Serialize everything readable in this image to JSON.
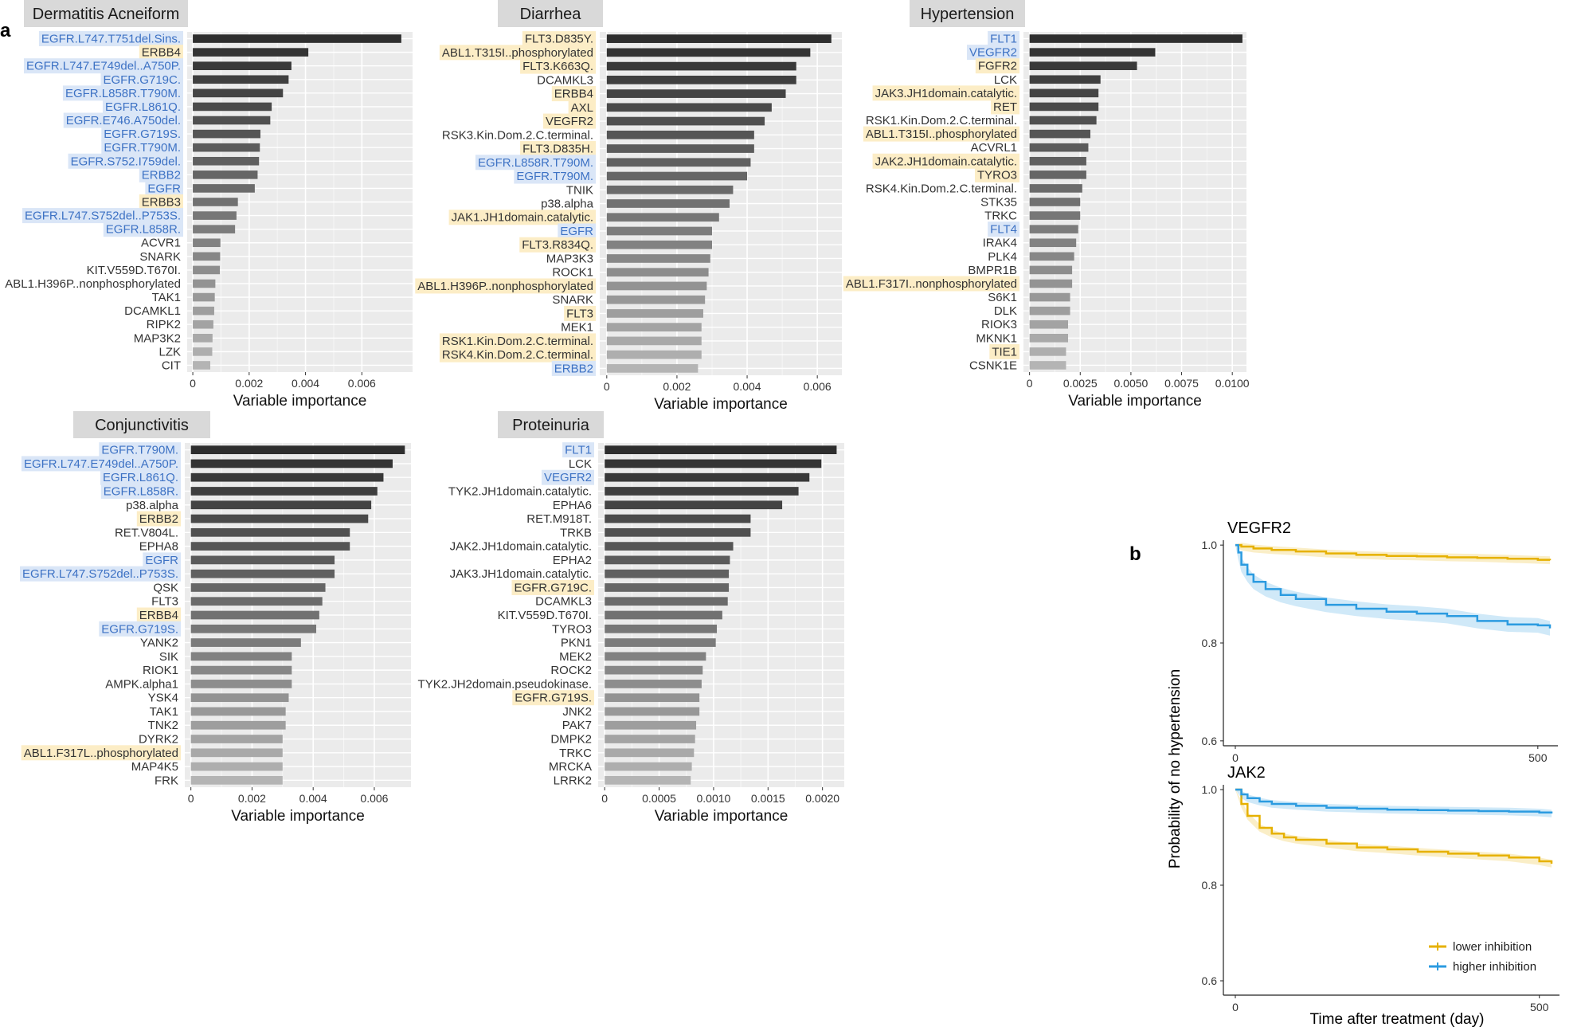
{
  "panel_letters": {
    "a": "a",
    "b": "b"
  },
  "colors": {
    "egfr_highlight": "#dae6f7",
    "egfr_text": "#3d72c4",
    "other_highlight": "#fcedc6",
    "bar_dark": "#2e2e2e",
    "bar_light": "#b4b4b4",
    "panel_bg": "#ebebeb",
    "strip_bg": "#d9d9d9",
    "km_lower": "#e6b100",
    "km_higher": "#2b9be0"
  },
  "chart_data": [
    {
      "type": "bar",
      "orientation": "horizontal",
      "title": "Dermatitis Acneiform",
      "xlabel": "Variable importance",
      "xlim": [
        -0.0002,
        0.0078
      ],
      "ticks": [
        0,
        0.002,
        0.004,
        0.006
      ],
      "tick_labels": [
        "0",
        "0.002",
        "0.004",
        "0.006"
      ],
      "categories": [
        "EGFR.L747.T751del.Sins.",
        "ERBB4",
        "EGFR.L747.E749del..A750P.",
        "EGFR.G719C.",
        "EGFR.L858R.T790M.",
        "EGFR.L861Q.",
        "EGFR.E746.A750del.",
        "EGFR.G719S.",
        "EGFR.T790M.",
        "EGFR.S752.I759del.",
        "ERBB2",
        "EGFR",
        "ERBB3",
        "EGFR.L747.S752del..P753S.",
        "EGFR.L858R.",
        "ACVR1",
        "SNARK",
        "KIT.V559D.T670I.",
        "ABL1.H396P..nonphosphorylated",
        "TAK1",
        "DCAMKL1",
        "RIPK2",
        "MAP3K2",
        "LZK",
        "CIT"
      ],
      "values": [
        0.0074,
        0.0041,
        0.0035,
        0.0034,
        0.0032,
        0.0028,
        0.00275,
        0.0024,
        0.00238,
        0.00235,
        0.0023,
        0.0022,
        0.0016,
        0.00155,
        0.0015,
        0.00098,
        0.00097,
        0.00096,
        0.0008,
        0.00078,
        0.00076,
        0.00073,
        0.0007,
        0.00069,
        0.00062
      ],
      "highlights": [
        "egfr",
        "other",
        "egfr",
        "egfr",
        "egfr",
        "egfr",
        "egfr",
        "egfr",
        "egfr",
        "egfr",
        "egfr",
        "egfr",
        "other",
        "egfr",
        "egfr",
        "",
        "",
        "",
        "",
        "",
        "",
        "",
        "",
        "",
        ""
      ]
    },
    {
      "type": "bar",
      "orientation": "horizontal",
      "title": "Diarrhea",
      "xlabel": "Variable importance",
      "xlim": [
        -0.0002,
        0.0067
      ],
      "ticks": [
        0,
        0.002,
        0.004,
        0.006
      ],
      "tick_labels": [
        "0",
        "0.002",
        "0.004",
        "0.006"
      ],
      "categories": [
        "FLT3.D835Y.",
        "ABL1.T315I..phosphorylated",
        "FLT3.K663Q.",
        "DCAMKL3",
        "ERBB4",
        "AXL",
        "VEGFR2",
        "RSK3.Kin.Dom.2.C.terminal.",
        "FLT3.D835H.",
        "EGFR.L858R.T790M.",
        "EGFR.T790M.",
        "TNIK",
        "p38.alpha",
        "JAK1.JH1domain.catalytic.",
        "EGFR",
        "FLT3.R834Q.",
        "MAP3K3",
        "ROCK1",
        "ABL1.H396P..nonphosphorylated",
        "SNARK",
        "FLT3",
        "MEK1",
        "RSK1.Kin.Dom.2.C.terminal.",
        "RSK4.Kin.Dom.2.C.terminal.",
        "ERBB2"
      ],
      "values": [
        0.0064,
        0.0058,
        0.0054,
        0.0054,
        0.0051,
        0.0047,
        0.0045,
        0.0042,
        0.0042,
        0.0041,
        0.004,
        0.0036,
        0.0035,
        0.0032,
        0.003,
        0.003,
        0.00295,
        0.0029,
        0.00285,
        0.0028,
        0.00275,
        0.0027,
        0.0027,
        0.0027,
        0.0026
      ],
      "highlights": [
        "other",
        "other",
        "other",
        "",
        "other",
        "other",
        "other",
        "",
        "other",
        "egfr",
        "egfr",
        "",
        "",
        "other",
        "egfr",
        "other",
        "",
        "",
        "other",
        "",
        "other",
        "",
        "other",
        "other",
        "egfr"
      ]
    },
    {
      "type": "bar",
      "orientation": "horizontal",
      "title": "Hypertension",
      "xlabel": "Variable importance",
      "xlim": [
        -0.0003,
        0.0107
      ],
      "ticks": [
        0,
        0.0025,
        0.005,
        0.0075,
        0.01
      ],
      "tick_labels": [
        "0",
        "0.0025",
        "0.0050",
        "0.0075",
        "0.0100"
      ],
      "categories": [
        "FLT1",
        "VEGFR2",
        "FGFR2",
        "LCK",
        "JAK3.JH1domain.catalytic.",
        "RET",
        "RSK1.Kin.Dom.2.C.terminal.",
        "ABL1.T315I..phosphorylated",
        "ACVRL1",
        "JAK2.JH1domain.catalytic.",
        "TYRO3",
        "RSK4.Kin.Dom.2.C.terminal.",
        "STK35",
        "TRKC",
        "FLT4",
        "IRAK4",
        "PLK4",
        "BMPR1B",
        "ABL1.F317I..nonphosphorylated",
        "S6K1",
        "DLK",
        "RIOK3",
        "MKNK1",
        "TIE1",
        "CSNK1E"
      ],
      "values": [
        0.0105,
        0.0062,
        0.0053,
        0.0035,
        0.0034,
        0.0034,
        0.0033,
        0.003,
        0.0029,
        0.0028,
        0.0028,
        0.0026,
        0.0025,
        0.0025,
        0.0024,
        0.0023,
        0.0022,
        0.0021,
        0.0021,
        0.002,
        0.002,
        0.0019,
        0.0019,
        0.0018,
        0.0018
      ],
      "highlights": [
        "egfr",
        "egfr",
        "other",
        "",
        "other",
        "other",
        "",
        "other",
        "",
        "other",
        "other",
        "",
        "",
        "",
        "egfr",
        "",
        "",
        "",
        "other",
        "",
        "",
        "",
        "",
        "other",
        ""
      ]
    },
    {
      "type": "bar",
      "orientation": "horizontal",
      "title": "Conjunctivitis",
      "xlabel": "Variable importance",
      "xlim": [
        -0.0002,
        0.0072
      ],
      "ticks": [
        0,
        0.002,
        0.004,
        0.006
      ],
      "tick_labels": [
        "0",
        "0.002",
        "0.004",
        "0.006"
      ],
      "categories": [
        "EGFR.T790M.",
        "EGFR.L747.E749del..A750P.",
        "EGFR.L861Q.",
        "EGFR.L858R.",
        "p38.alpha",
        "ERBB2",
        "RET.V804L.",
        "EPHA8",
        "EGFR",
        "EGFR.L747.S752del..P753S.",
        "QSK",
        "FLT3",
        "ERBB4",
        "EGFR.G719S.",
        "YANK2",
        "SIK",
        "RIOK1",
        "AMPK.alpha1",
        "YSK4",
        "TAK1",
        "TNK2",
        "DYRK2",
        "ABL1.F317L..phosphorylated",
        "MAP4K5",
        "FRK"
      ],
      "values": [
        0.007,
        0.0066,
        0.0063,
        0.0061,
        0.0059,
        0.0058,
        0.0052,
        0.0052,
        0.0047,
        0.0047,
        0.0044,
        0.0043,
        0.0042,
        0.0041,
        0.0036,
        0.0033,
        0.0033,
        0.0033,
        0.0032,
        0.0031,
        0.0031,
        0.003,
        0.003,
        0.003,
        0.003
      ],
      "highlights": [
        "egfr",
        "egfr",
        "egfr",
        "egfr",
        "",
        "other",
        "",
        "",
        "egfr",
        "egfr",
        "",
        "",
        "other",
        "egfr",
        "",
        "",
        "",
        "",
        "",
        "",
        "",
        "",
        "other",
        "",
        ""
      ]
    },
    {
      "type": "bar",
      "orientation": "horizontal",
      "title": "Proteinuria",
      "xlabel": "Variable importance",
      "xlim": [
        -6e-05,
        0.0022
      ],
      "ticks": [
        0,
        0.0005,
        0.001,
        0.0015,
        0.002
      ],
      "tick_labels": [
        "0",
        "0.0005",
        "0.0010",
        "0.0015",
        "0.0020"
      ],
      "categories": [
        "FLT1",
        "LCK",
        "VEGFR2",
        "TYK2.JH1domain.catalytic.",
        "EPHA6",
        "RET.M918T.",
        "TRKB",
        "JAK2.JH1domain.catalytic.",
        "EPHA2",
        "JAK3.JH1domain.catalytic.",
        "EGFR.G719C.",
        "DCAMKL3",
        "KIT.V559D.T670I.",
        "TYRO3",
        "PKN1",
        "MEK2",
        "ROCK2",
        "TYK2.JH2domain.pseudokinase.",
        "EGFR.G719S.",
        "JNK2",
        "PAK7",
        "DMPK2",
        "TRKC",
        "MRCKA",
        "LRRK2"
      ],
      "values": [
        0.00213,
        0.00199,
        0.00188,
        0.00178,
        0.00163,
        0.00134,
        0.00134,
        0.00118,
        0.00115,
        0.00114,
        0.00114,
        0.00113,
        0.00108,
        0.00103,
        0.00102,
        0.00093,
        0.0009,
        0.00089,
        0.00087,
        0.00087,
        0.00084,
        0.00083,
        0.00082,
        0.0008,
        0.00079
      ],
      "highlights": [
        "egfr",
        "",
        "egfr",
        "",
        "",
        "",
        "",
        "",
        "",
        "",
        "other",
        "",
        "",
        "",
        "",
        "",
        "",
        "",
        "other",
        "",
        "",
        "",
        "",
        "",
        ""
      ]
    },
    {
      "type": "line",
      "subtype": "kaplan-meier",
      "xlabel": "Time after treatment (day)",
      "ylabel": "Probability of no hypertension",
      "panels": [
        {
          "title": "VEGFR2",
          "xlim": [
            0,
            520
          ],
          "ylim": [
            0.59,
            1.01
          ],
          "xticks": [
            0,
            500
          ],
          "yticks": [
            0.6,
            0.8,
            1.0
          ],
          "ytick_labels": [
            "0.6",
            "0.8",
            "1.0"
          ],
          "series": [
            {
              "name": "lower inhibition",
              "x": [
                0,
                10,
                30,
                60,
                100,
                150,
                200,
                250,
                300,
                350,
                400,
                450,
                500,
                520
              ],
              "y": [
                1.0,
                0.997,
                0.993,
                0.99,
                0.987,
                0.983,
                0.98,
                0.978,
                0.977,
                0.975,
                0.974,
                0.972,
                0.97,
                0.969
              ]
            },
            {
              "name": "higher inhibition",
              "x": [
                0,
                5,
                10,
                20,
                30,
                50,
                75,
                100,
                150,
                200,
                250,
                300,
                350,
                400,
                450,
                500,
                520
              ],
              "y": [
                1.0,
                0.985,
                0.96,
                0.94,
                0.925,
                0.91,
                0.898,
                0.89,
                0.878,
                0.87,
                0.864,
                0.86,
                0.855,
                0.845,
                0.838,
                0.836,
                0.83
              ]
            }
          ]
        },
        {
          "title": "JAK2",
          "xlim": [
            0,
            520
          ],
          "ylim": [
            0.57,
            1.01
          ],
          "xticks": [
            0,
            500
          ],
          "yticks": [
            0.6,
            0.8,
            1.0
          ],
          "ytick_labels": [
            "0.6",
            "0.8",
            "1.0"
          ],
          "series": [
            {
              "name": "lower inhibition",
              "x": [
                0,
                10,
                20,
                40,
                60,
                80,
                100,
                150,
                200,
                250,
                300,
                350,
                400,
                450,
                500,
                520
              ],
              "y": [
                1.0,
                0.97,
                0.945,
                0.92,
                0.908,
                0.9,
                0.895,
                0.887,
                0.879,
                0.875,
                0.87,
                0.866,
                0.862,
                0.858,
                0.85,
                0.845
              ]
            },
            {
              "name": "higher inhibition",
              "x": [
                0,
                10,
                20,
                40,
                60,
                100,
                150,
                200,
                250,
                300,
                350,
                400,
                450,
                500,
                520
              ],
              "y": [
                1.0,
                0.99,
                0.982,
                0.975,
                0.97,
                0.966,
                0.962,
                0.96,
                0.958,
                0.957,
                0.956,
                0.955,
                0.954,
                0.952,
                0.95
              ]
            }
          ]
        }
      ],
      "legend": {
        "position": "bottom-right",
        "entries": [
          "lower inhibition",
          "higher inhibition"
        ]
      }
    }
  ]
}
